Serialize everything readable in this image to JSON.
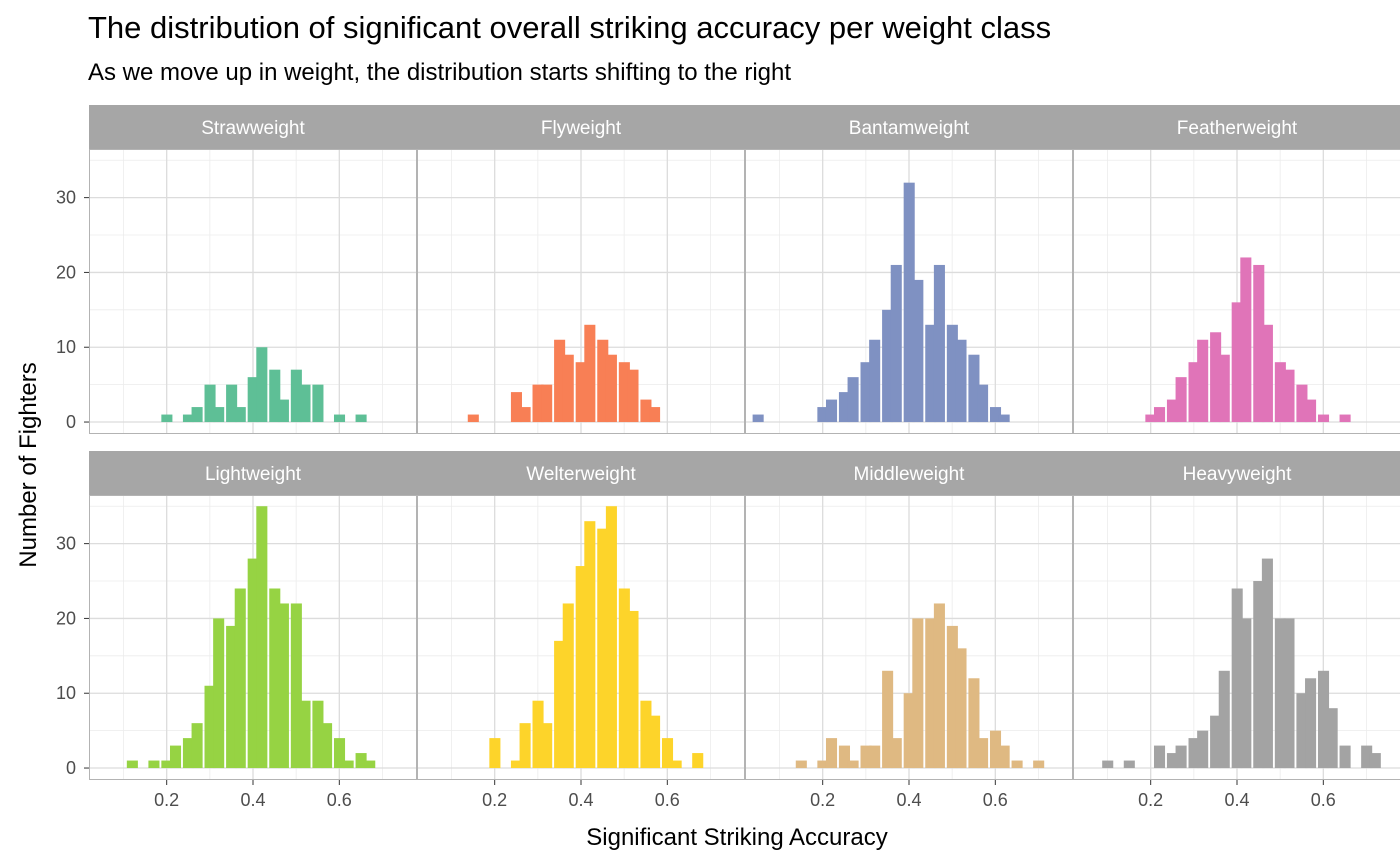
{
  "chart_data": {
    "type": "histogram",
    "title": "The distribution of significant overall striking accuracy per weight class",
    "subtitle": "As we move up in weight, the distribution starts shifting to the right",
    "xlabel": "Significant Striking Accuracy",
    "ylabel": "Number of Fighters",
    "xlim": [
      0.02,
      0.78
    ],
    "ylim": [
      -1.6,
      36.5
    ],
    "x_ticks": [
      "0.2",
      "0.4",
      "0.6"
    ],
    "y_ticks": [
      "0",
      "10",
      "20",
      "30"
    ],
    "grid": true,
    "legend": "none",
    "panels": [
      {
        "name": "Strawweight",
        "color": "#5ebf96",
        "bins": [
          [
            0.2,
            1
          ],
          [
            0.25,
            1
          ],
          [
            0.27,
            2
          ],
          [
            0.3,
            5
          ],
          [
            0.32,
            2
          ],
          [
            0.35,
            5
          ],
          [
            0.37,
            2
          ],
          [
            0.4,
            6
          ],
          [
            0.42,
            10
          ],
          [
            0.45,
            7
          ],
          [
            0.47,
            3
          ],
          [
            0.5,
            7
          ],
          [
            0.52,
            5
          ],
          [
            0.55,
            5
          ],
          [
            0.6,
            1
          ],
          [
            0.65,
            1
          ]
        ]
      },
      {
        "name": "Flyweight",
        "color": "#f87f55",
        "bins": [
          [
            0.15,
            1
          ],
          [
            0.25,
            4
          ],
          [
            0.27,
            2
          ],
          [
            0.3,
            5
          ],
          [
            0.32,
            5
          ],
          [
            0.35,
            11
          ],
          [
            0.37,
            9
          ],
          [
            0.4,
            8
          ],
          [
            0.42,
            13
          ],
          [
            0.45,
            11
          ],
          [
            0.47,
            9
          ],
          [
            0.5,
            8
          ],
          [
            0.52,
            7
          ],
          [
            0.55,
            3
          ],
          [
            0.57,
            2
          ]
        ]
      },
      {
        "name": "Bantamweight",
        "color": "#7f91c2",
        "bins": [
          [
            0.05,
            1
          ],
          [
            0.2,
            2
          ],
          [
            0.22,
            3
          ],
          [
            0.25,
            4
          ],
          [
            0.27,
            6
          ],
          [
            0.3,
            8
          ],
          [
            0.32,
            11
          ],
          [
            0.35,
            15
          ],
          [
            0.37,
            21
          ],
          [
            0.4,
            32
          ],
          [
            0.42,
            19
          ],
          [
            0.45,
            13
          ],
          [
            0.47,
            21
          ],
          [
            0.5,
            13
          ],
          [
            0.52,
            11
          ],
          [
            0.55,
            9
          ],
          [
            0.57,
            5
          ],
          [
            0.6,
            2
          ],
          [
            0.62,
            1
          ]
        ]
      },
      {
        "name": "Featherweight",
        "color": "#e074b8",
        "bins": [
          [
            0.2,
            1
          ],
          [
            0.22,
            2
          ],
          [
            0.25,
            3
          ],
          [
            0.27,
            6
          ],
          [
            0.3,
            8
          ],
          [
            0.32,
            11
          ],
          [
            0.35,
            12
          ],
          [
            0.37,
            9
          ],
          [
            0.4,
            16
          ],
          [
            0.42,
            22
          ],
          [
            0.45,
            21
          ],
          [
            0.47,
            13
          ],
          [
            0.5,
            8
          ],
          [
            0.52,
            7
          ],
          [
            0.55,
            5
          ],
          [
            0.57,
            3
          ],
          [
            0.6,
            1
          ],
          [
            0.65,
            1
          ]
        ]
      },
      {
        "name": "Lightweight",
        "color": "#96d343",
        "bins": [
          [
            0.12,
            1
          ],
          [
            0.17,
            1
          ],
          [
            0.2,
            1
          ],
          [
            0.22,
            3
          ],
          [
            0.25,
            4
          ],
          [
            0.27,
            6
          ],
          [
            0.3,
            11
          ],
          [
            0.32,
            20
          ],
          [
            0.35,
            19
          ],
          [
            0.37,
            24
          ],
          [
            0.4,
            28
          ],
          [
            0.42,
            35
          ],
          [
            0.45,
            24
          ],
          [
            0.47,
            22
          ],
          [
            0.5,
            22
          ],
          [
            0.52,
            9
          ],
          [
            0.55,
            9
          ],
          [
            0.57,
            6
          ],
          [
            0.6,
            4
          ],
          [
            0.62,
            1
          ],
          [
            0.65,
            2
          ],
          [
            0.67,
            1
          ]
        ]
      },
      {
        "name": "Welterweight",
        "color": "#fdd42a",
        "bins": [
          [
            0.2,
            4
          ],
          [
            0.25,
            1
          ],
          [
            0.27,
            6
          ],
          [
            0.3,
            9
          ],
          [
            0.32,
            6
          ],
          [
            0.35,
            17
          ],
          [
            0.37,
            22
          ],
          [
            0.4,
            27
          ],
          [
            0.42,
            33
          ],
          [
            0.45,
            32
          ],
          [
            0.47,
            35
          ],
          [
            0.5,
            24
          ],
          [
            0.52,
            21
          ],
          [
            0.55,
            9
          ],
          [
            0.57,
            7
          ],
          [
            0.6,
            4
          ],
          [
            0.62,
            1
          ],
          [
            0.67,
            2
          ]
        ]
      },
      {
        "name": "Middleweight",
        "color": "#dfb982",
        "bins": [
          [
            0.15,
            1
          ],
          [
            0.2,
            1
          ],
          [
            0.22,
            4
          ],
          [
            0.25,
            3
          ],
          [
            0.27,
            1
          ],
          [
            0.3,
            3
          ],
          [
            0.32,
            3
          ],
          [
            0.35,
            13
          ],
          [
            0.37,
            4
          ],
          [
            0.4,
            10
          ],
          [
            0.42,
            20
          ],
          [
            0.45,
            20
          ],
          [
            0.47,
            22
          ],
          [
            0.5,
            19
          ],
          [
            0.52,
            16
          ],
          [
            0.55,
            12
          ],
          [
            0.57,
            4
          ],
          [
            0.6,
            5
          ],
          [
            0.62,
            3
          ],
          [
            0.65,
            1
          ],
          [
            0.7,
            1
          ]
        ]
      },
      {
        "name": "Heavyweight",
        "color": "#a3a3a3",
        "bins": [
          [
            0.1,
            1
          ],
          [
            0.15,
            1
          ],
          [
            0.22,
            3
          ],
          [
            0.25,
            2
          ],
          [
            0.27,
            3
          ],
          [
            0.3,
            4
          ],
          [
            0.32,
            5
          ],
          [
            0.35,
            7
          ],
          [
            0.37,
            13
          ],
          [
            0.4,
            24
          ],
          [
            0.42,
            20
          ],
          [
            0.45,
            25
          ],
          [
            0.47,
            28
          ],
          [
            0.5,
            20
          ],
          [
            0.52,
            20
          ],
          [
            0.55,
            10
          ],
          [
            0.57,
            12
          ],
          [
            0.6,
            13
          ],
          [
            0.62,
            8
          ],
          [
            0.65,
            3
          ],
          [
            0.7,
            3
          ],
          [
            0.72,
            2
          ]
        ]
      }
    ]
  }
}
